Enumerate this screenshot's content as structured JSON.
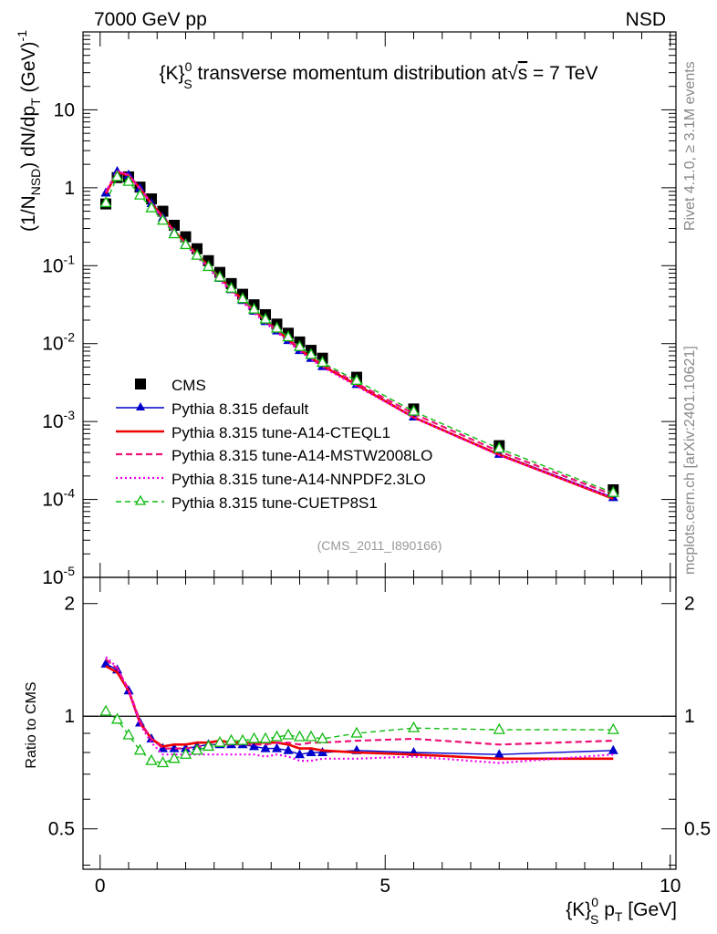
{
  "header": {
    "left": "7000 GeV pp",
    "right": "NSD"
  },
  "side_labels": {
    "right_top": "Rivet 4.1.0, ≥ 3.1M events",
    "right_bottom": "mcplots.cern.ch [arXiv:2401.10621]"
  },
  "chart_data": [
    {
      "type": "line",
      "panel": "main",
      "title": "{K}S0 transverse momentum distribution at √s = 7 TeV",
      "title_parts": {
        "a": "{K}",
        "sub": "S",
        "sup": "0",
        "b": " transverse momentum distribution at",
        "sqrt": "√",
        "s": "s",
        "c": " = 7 TeV"
      },
      "ylabel": "(1/NNSD) dN/dpT (GeV)-1",
      "ylabel_parts": {
        "a": "(1/N",
        "sub1": "NSD",
        "b": ") dN/dp",
        "sub2": "T",
        "c": " (GeV)",
        "sup": "-1"
      },
      "xlabel": "{K}S0 pT [GeV]",
      "xlabel_parts": {
        "a": "{K}",
        "sub1": "S",
        "sup": "0",
        "b": " p",
        "sub2": "T",
        "c": " [GeV]"
      },
      "yscale": "log",
      "ylim": [
        1e-05,
        100
      ],
      "xlim": [
        -0.3,
        10.1
      ],
      "x_ticks": [
        0,
        5,
        10
      ],
      "y_ticks": [
        {
          "base": "10",
          "exp": "-5"
        },
        {
          "base": "10",
          "exp": "-4"
        },
        {
          "base": "10",
          "exp": "-3"
        },
        {
          "base": "10",
          "exp": "-2"
        },
        {
          "base": "10",
          "exp": "-1"
        },
        {
          "base": "1",
          "exp": ""
        },
        {
          "base": "10",
          "exp": ""
        }
      ],
      "annotation": "(CMS_2011_I890166)",
      "legend_position": "bottom-left",
      "x": [
        0.1,
        0.3,
        0.5,
        0.7,
        0.9,
        1.1,
        1.3,
        1.5,
        1.7,
        1.9,
        2.1,
        2.3,
        2.5,
        2.7,
        2.9,
        3.1,
        3.3,
        3.5,
        3.7,
        3.9,
        4.5,
        5.5,
        7.0,
        9.0
      ],
      "series": [
        {
          "name": "CMS",
          "style": "data",
          "values": [
            0.62,
            1.35,
            1.38,
            1.02,
            0.72,
            0.5,
            0.33,
            0.235,
            0.165,
            0.116,
            0.082,
            0.059,
            0.043,
            0.0315,
            0.0235,
            0.0178,
            0.0136,
            0.0105,
            0.0082,
            0.0065,
            0.0037,
            0.00145,
            0.00049,
            0.000133
          ]
        },
        {
          "name": "Pythia 8.315 default",
          "style": "default",
          "values": [
            0.86,
            1.62,
            1.46,
            0.99,
            0.63,
            0.415,
            0.27,
            0.194,
            0.137,
            0.097,
            0.069,
            0.0495,
            0.036,
            0.0262,
            0.0193,
            0.0146,
            0.011,
            0.0082,
            0.0065,
            0.0051,
            0.003,
            0.00115,
            0.000382,
            0.000106
          ]
        },
        {
          "name": "Pythia 8.315 tune-A14-CTEQL1",
          "style": "cteq",
          "values": [
            0.84,
            1.58,
            1.44,
            0.98,
            0.63,
            0.425,
            0.278,
            0.197,
            0.14,
            0.098,
            0.07,
            0.05,
            0.0365,
            0.0268,
            0.0197,
            0.015,
            0.0113,
            0.0085,
            0.0066,
            0.0052,
            0.00295,
            0.00113,
            0.000375,
            0.000102
          ]
        },
        {
          "name": "Pythia 8.315 tune-A14-MSTW2008LO",
          "style": "mstw",
          "values": [
            0.88,
            1.63,
            1.47,
            0.99,
            0.63,
            0.415,
            0.27,
            0.192,
            0.136,
            0.096,
            0.069,
            0.0494,
            0.036,
            0.0263,
            0.0196,
            0.015,
            0.0115,
            0.0088,
            0.0069,
            0.0055,
            0.0031,
            0.00126,
            0.000412,
            0.000115
          ]
        },
        {
          "name": "Pythia 8.315 tune-A14-NNPDF2.3LO",
          "style": "nnpdf",
          "values": [
            0.89,
            1.63,
            1.46,
            0.97,
            0.61,
            0.395,
            0.262,
            0.186,
            0.131,
            0.092,
            0.065,
            0.0467,
            0.034,
            0.0248,
            0.0184,
            0.014,
            0.0106,
            0.008,
            0.0063,
            0.005,
            0.00285,
            0.00113,
            0.000367,
            0.000105
          ]
        },
        {
          "name": "Pythia 8.315 tune-CUETP8S1",
          "style": "cuet",
          "values": [
            0.64,
            1.38,
            1.2,
            0.8,
            0.55,
            0.38,
            0.255,
            0.185,
            0.135,
            0.097,
            0.071,
            0.051,
            0.0375,
            0.0275,
            0.0205,
            0.0157,
            0.0121,
            0.0091,
            0.0072,
            0.0057,
            0.00335,
            0.00135,
            0.00045,
            0.000122
          ]
        }
      ]
    },
    {
      "type": "line",
      "panel": "ratio",
      "ylabel": "Ratio to CMS",
      "yscale": "log",
      "ylim": [
        0.39,
        2.35
      ],
      "xlim": [
        -0.3,
        10.1
      ],
      "x_ticks": [
        0,
        5,
        10
      ],
      "y_ticks": [
        0.5,
        1,
        2
      ],
      "reference_line": 1,
      "x": [
        0.1,
        0.3,
        0.5,
        0.7,
        0.9,
        1.1,
        1.3,
        1.5,
        1.7,
        1.9,
        2.1,
        2.3,
        2.5,
        2.7,
        2.9,
        3.1,
        3.3,
        3.5,
        3.7,
        3.9,
        4.5,
        5.5,
        7.0,
        9.0
      ],
      "series": [
        {
          "name": "Pythia 8.315 default",
          "style": "default",
          "values": [
            1.38,
            1.33,
            1.17,
            0.96,
            0.87,
            0.82,
            0.82,
            0.82,
            0.83,
            0.84,
            0.84,
            0.84,
            0.84,
            0.83,
            0.82,
            0.82,
            0.81,
            0.79,
            0.8,
            0.8,
            0.81,
            0.8,
            0.79,
            0.81
          ]
        },
        {
          "name": "Pythia 8.315 tune-A14-CTEQL1",
          "style": "cteq",
          "values": [
            1.36,
            1.31,
            1.17,
            0.96,
            0.87,
            0.83,
            0.84,
            0.84,
            0.85,
            0.85,
            0.86,
            0.85,
            0.85,
            0.85,
            0.85,
            0.85,
            0.84,
            0.82,
            0.82,
            0.81,
            0.8,
            0.79,
            0.77,
            0.77
          ]
        },
        {
          "name": "Pythia 8.315 tune-A14-MSTW2008LO",
          "style": "mstw",
          "values": [
            1.42,
            1.34,
            1.18,
            0.97,
            0.87,
            0.82,
            0.82,
            0.82,
            0.83,
            0.83,
            0.84,
            0.84,
            0.84,
            0.84,
            0.84,
            0.85,
            0.85,
            0.84,
            0.85,
            0.85,
            0.86,
            0.87,
            0.84,
            0.86
          ]
        },
        {
          "name": "Pythia 8.315 tune-A14-NNPDF2.3LO",
          "style": "nnpdf",
          "values": [
            1.44,
            1.35,
            1.17,
            0.95,
            0.85,
            0.79,
            0.79,
            0.79,
            0.79,
            0.79,
            0.79,
            0.79,
            0.79,
            0.79,
            0.78,
            0.79,
            0.78,
            0.76,
            0.76,
            0.77,
            0.77,
            0.78,
            0.75,
            0.79
          ]
        },
        {
          "name": "Pythia 8.315 tune-CUETP8S1",
          "style": "cuet",
          "values": [
            1.03,
            0.98,
            0.89,
            0.81,
            0.76,
            0.75,
            0.77,
            0.79,
            0.81,
            0.83,
            0.85,
            0.86,
            0.86,
            0.87,
            0.87,
            0.88,
            0.89,
            0.88,
            0.88,
            0.87,
            0.9,
            0.93,
            0.92,
            0.92
          ]
        }
      ]
    }
  ],
  "series_styles": {
    "data": {
      "color": "#000000"
    },
    "default": {
      "color": "#0000cc",
      "dash": "",
      "width": 1.4,
      "marker": "triangle"
    },
    "cteq": {
      "color": "#ee0000",
      "dash": "",
      "width": 2.6,
      "marker": "none"
    },
    "mstw": {
      "color": "#ee1177",
      "dash": "7,4",
      "width": 2.2,
      "marker": "none"
    },
    "nnpdf": {
      "color": "#ee00ee",
      "dash": "2,3",
      "width": 2.2,
      "marker": "none"
    },
    "cuet": {
      "color": "#11bb11",
      "dash": "6,4",
      "width": 1.4,
      "marker": "open-triangle"
    }
  }
}
